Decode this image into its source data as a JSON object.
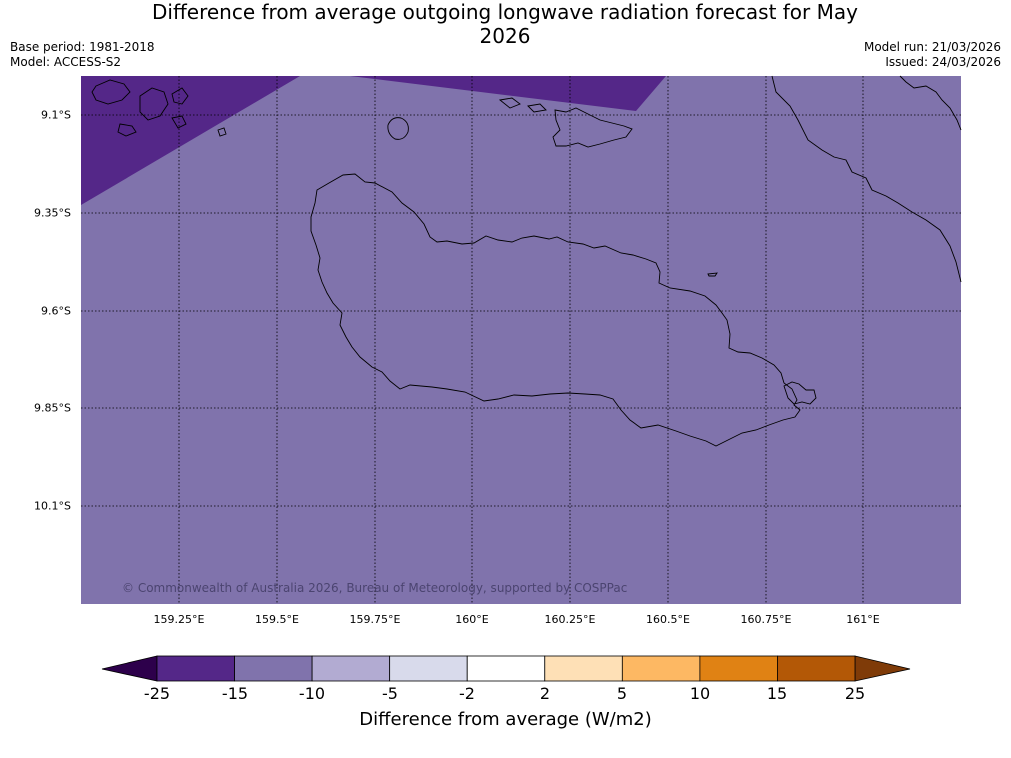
{
  "title": "Difference from average outgoing longwave radiation forecast for May 2026",
  "meta_left": [
    "Base period: 1981-2018",
    "Model: ACCESS-S2"
  ],
  "meta_right": [
    "Model run: 21/03/2026",
    "Issued: 24/03/2026"
  ],
  "copyright": "© Commonwealth of Australia 2026, Bureau of Meteorology, supported by COSPPac",
  "latitudes": [
    "9.1°S",
    "9.35°S",
    "9.6°S",
    "9.85°S",
    "10.1°S"
  ],
  "longitudes": [
    "159.25°E",
    "159.5°E",
    "159.75°E",
    "160°E",
    "160.25°E",
    "160.5°E",
    "160.75°E",
    "161°E"
  ],
  "colorbar": {
    "title": "Difference from average (W/m2)",
    "labels": [
      "-25",
      "-15",
      "-10",
      "-5",
      "-2",
      "2",
      "5",
      "10",
      "15",
      "25"
    ],
    "colors": [
      "#542788",
      "#8073ac",
      "#b2abd2",
      "#d8daeb",
      "#ffffff",
      "#fee0b6",
      "#fdb863",
      "#e08214",
      "#b35806"
    ],
    "extend_low_color": "#2d004b",
    "extend_high_color": "#7f3b08"
  },
  "map": {
    "background_color": "#8073ac",
    "anomaly_color": "#542788"
  }
}
